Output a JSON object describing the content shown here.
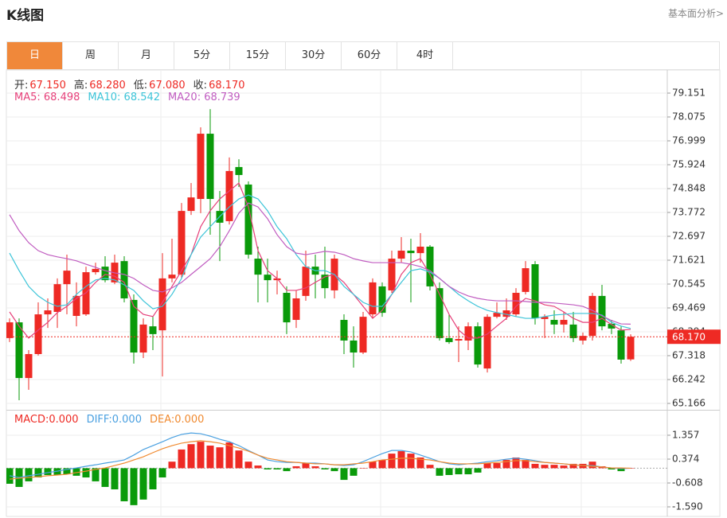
{
  "header": {
    "title": "K线图",
    "link": "基本面分析>"
  },
  "tabs": [
    "日",
    "周",
    "月",
    "5分",
    "15分",
    "30分",
    "60分",
    "4时"
  ],
  "chart_data": [
    {
      "type": "candlestick",
      "up_color": "#ee2a24",
      "down_color": "#0a9a0a",
      "info": [
        {
          "label": "开:",
          "value": "67.150"
        },
        {
          "label": "高:",
          "value": "68.280"
        },
        {
          "label": "低:",
          "value": "67.080"
        },
        {
          "label": "收:",
          "value": "68.170"
        }
      ],
      "legend": [
        "MA5: 68.498",
        "MA10: 68.542",
        "MA20: 68.739"
      ],
      "current_price": {
        "value": 68.17,
        "label": "68.170"
      },
      "ylim": [
        64.879,
        80.155
      ],
      "yticks": [
        79.151,
        78.075,
        76.999,
        75.924,
        74.848,
        73.772,
        72.697,
        71.621,
        70.545,
        69.469,
        68.394,
        67.318,
        66.242,
        65.166
      ],
      "grid": true,
      "open": [
        68.11,
        68.82,
        66.31,
        67.39,
        69.18,
        69.29,
        70.54,
        69.11,
        69.18,
        71.08,
        71.33,
        70.62,
        71.58,
        69.83,
        67.46,
        68.64,
        68.46,
        70.8,
        70.97,
        73.84,
        74.38,
        77.32,
        73.84,
        73.38,
        75.82,
        75.03,
        71.69,
        70.97,
        70.72,
        70.15,
        68.93,
        70.01,
        71.33,
        70.97,
        70.26,
        68.93,
        68.0,
        67.46,
        69.18,
        70.44,
        70.26,
        71.69,
        72.05,
        71.94,
        72.23,
        70.36,
        68.11,
        68.0,
        68.0,
        68.64,
        66.74,
        69.07,
        69.07,
        69.18,
        70.19,
        71.44,
        68.97,
        68.93,
        68.72,
        68.72,
        68.0,
        68.21,
        70.01,
        68.75,
        68.46,
        67.15
      ],
      "high": [
        69.0,
        69.0,
        67.57,
        69.72,
        69.9,
        70.8,
        71.87,
        70.62,
        71.33,
        71.51,
        71.8,
        71.87,
        71.8,
        70.08,
        69.0,
        69.07,
        71.94,
        72.59,
        74.2,
        75.1,
        77.61,
        78.43,
        74.74,
        76.25,
        76.17,
        75.17,
        72.23,
        71.69,
        71.15,
        70.44,
        70.26,
        72.05,
        71.87,
        72.23,
        71.87,
        69.18,
        68.64,
        69.29,
        70.8,
        70.62,
        72.05,
        72.66,
        72.59,
        72.84,
        72.3,
        70.62,
        69.18,
        68.64,
        68.82,
        68.82,
        69.18,
        69.72,
        69.9,
        70.36,
        71.58,
        71.58,
        69.18,
        69.36,
        69.29,
        69.29,
        68.36,
        70.15,
        70.51,
        68.93,
        68.64,
        68.28
      ],
      "low": [
        67.93,
        65.31,
        65.78,
        67.32,
        68.57,
        68.57,
        69.18,
        68.64,
        69.11,
        70.97,
        70.62,
        70.54,
        69.72,
        66.96,
        67.21,
        67.57,
        66.38,
        70.62,
        70.8,
        73.66,
        73.74,
        72.77,
        71.58,
        73.23,
        74.92,
        71.69,
        69.72,
        69.72,
        70.08,
        68.29,
        68.57,
        69.79,
        69.9,
        69.9,
        69.9,
        67.39,
        66.78,
        67.39,
        69.0,
        69.07,
        70.15,
        71.51,
        69.72,
        71.51,
        70.26,
        68.0,
        67.85,
        67.03,
        67.57,
        66.78,
        66.56,
        69.0,
        68.93,
        69.07,
        70.08,
        68.72,
        68.11,
        68.29,
        68.36,
        67.93,
        67.82,
        68.0,
        68.46,
        68.29,
        66.96,
        67.08
      ],
      "close": [
        68.82,
        66.31,
        67.39,
        69.18,
        69.36,
        70.54,
        71.15,
        70.01,
        71.08,
        71.23,
        70.72,
        71.51,
        69.9,
        67.46,
        68.72,
        68.29,
        70.8,
        70.97,
        73.84,
        74.45,
        77.32,
        74.38,
        73.31,
        75.64,
        75.46,
        71.87,
        70.97,
        70.72,
        70.8,
        68.82,
        69.9,
        71.33,
        70.97,
        70.36,
        71.69,
        68.0,
        67.46,
        69.07,
        70.62,
        69.25,
        71.69,
        72.05,
        71.94,
        72.23,
        70.44,
        68.11,
        67.93,
        68.07,
        68.64,
        66.92,
        69.07,
        69.25,
        69.36,
        70.15,
        71.26,
        69.0,
        69.07,
        68.72,
        68.93,
        68.11,
        68.21,
        70.01,
        68.64,
        68.54,
        67.14,
        68.17
      ],
      "series": [
        {
          "color": "#e6407a",
          "values": [
            69.29,
            68.65,
            68.11,
            68.47,
            68.82,
            69.26,
            69.54,
            69.9,
            70.15,
            70.62,
            70.98,
            70.9,
            70.62,
            69.54,
            69.18,
            69.08,
            69.72,
            70.44,
            71.15,
            71.87,
            73.13,
            73.85,
            74.38,
            74.74,
            75.1,
            74.02,
            72.05,
            71.15,
            70.8,
            70.26,
            70.26,
            70.37,
            70.62,
            70.87,
            70.98,
            70.62,
            70.08,
            69.54,
            69.0,
            69.36,
            70.08,
            70.98,
            71.51,
            71.69,
            70.98,
            70.08,
            69.18,
            68.47,
            68.11,
            68.11,
            68.29,
            68.65,
            69.0,
            69.54,
            69.9,
            69.79,
            69.61,
            69.54,
            69.29,
            69.0,
            68.82,
            68.82,
            69.0,
            68.72,
            68.47,
            68.498
          ]
        },
        {
          "color": "#3cc4d8",
          "values": [
            71.94,
            71.15,
            70.44,
            70.01,
            69.72,
            69.54,
            69.61,
            70.08,
            70.44,
            70.73,
            70.8,
            70.73,
            70.51,
            70.26,
            69.79,
            69.43,
            69.54,
            70.08,
            70.8,
            71.87,
            72.66,
            73.13,
            73.59,
            74.02,
            74.38,
            74.56,
            74.38,
            73.85,
            73.13,
            72.59,
            71.87,
            71.33,
            71.15,
            71.15,
            70.98,
            70.44,
            70.08,
            69.72,
            69.54,
            69.54,
            70.08,
            70.62,
            71.15,
            71.23,
            71.08,
            70.8,
            70.44,
            70.08,
            69.79,
            69.54,
            69.36,
            69.26,
            69.18,
            69.08,
            69.0,
            69.0,
            69.08,
            69.15,
            69.18,
            69.22,
            69.22,
            69.22,
            69.15,
            68.82,
            68.65,
            68.542
          ]
        },
        {
          "color": "#c05cc0",
          "values": [
            73.67,
            72.95,
            72.41,
            72.05,
            71.87,
            71.77,
            71.69,
            71.59,
            71.44,
            71.3,
            71.15,
            71.05,
            70.98,
            70.8,
            70.51,
            70.26,
            70.19,
            70.37,
            70.62,
            70.98,
            71.33,
            71.69,
            72.23,
            72.95,
            73.74,
            74.2,
            74.02,
            73.49,
            72.77,
            72.23,
            71.94,
            71.87,
            71.94,
            72.02,
            71.98,
            71.87,
            71.69,
            71.59,
            71.51,
            71.51,
            71.51,
            71.51,
            71.44,
            71.33,
            71.15,
            70.8,
            70.44,
            70.19,
            70.01,
            69.9,
            69.83,
            69.79,
            69.79,
            69.79,
            69.76,
            69.72,
            69.72,
            69.69,
            69.65,
            69.61,
            69.54,
            69.36,
            69.11,
            68.9,
            68.75,
            68.739
          ]
        }
      ]
    },
    {
      "type": "macd",
      "up_color": "#ee2a24",
      "down_color": "#0a9a0a",
      "legend": [
        "MACD:0.000",
        "DIFF:0.000",
        "DEA:0.000"
      ],
      "legend_colors": [
        "#ee2a24",
        "#4aa0e0",
        "#f08a30"
      ],
      "ylim": [
        -1.95,
        2.371
      ],
      "yticks": [
        1.357,
        0.374,
        -0.608,
        {
          "value": -1.59,
          "label": "-1.590"
        }
      ],
      "grid": true,
      "values": [
        -0.64,
        -0.77,
        -0.54,
        -0.38,
        -0.28,
        -0.28,
        -0.25,
        -0.31,
        -0.38,
        -0.54,
        -0.77,
        -0.87,
        -1.36,
        -1.52,
        -1.29,
        -0.87,
        -0.38,
        0.27,
        0.77,
        0.99,
        1.09,
        0.93,
        0.86,
        1.06,
        0.73,
        0.27,
        0.11,
        -0.05,
        -0.05,
        -0.12,
        0.08,
        0.21,
        0.08,
        -0.05,
        -0.12,
        -0.48,
        -0.31,
        0.01,
        0.27,
        0.34,
        0.6,
        0.7,
        0.6,
        0.44,
        0.14,
        -0.31,
        -0.28,
        -0.25,
        -0.25,
        -0.18,
        0.21,
        0.21,
        0.34,
        0.44,
        0.34,
        0.18,
        0.14,
        0.14,
        0.11,
        0.18,
        0.18,
        0.27,
        0.08,
        -0.05,
        -0.12,
        0
      ],
      "series": [
        {
          "color": "#4aa0e0",
          "values": [
            -0.31,
            -0.38,
            -0.31,
            -0.25,
            -0.18,
            -0.12,
            -0.05,
            0.01,
            0.08,
            0.14,
            0.21,
            0.27,
            0.34,
            0.54,
            0.77,
            0.93,
            1.09,
            1.26,
            1.39,
            1.45,
            1.42,
            1.32,
            1.19,
            1.09,
            0.93,
            0.73,
            0.54,
            0.34,
            0.27,
            0.24,
            0.24,
            0.21,
            0.21,
            0.18,
            0.14,
            0.11,
            0.14,
            0.27,
            0.44,
            0.6,
            0.73,
            0.73,
            0.67,
            0.54,
            0.41,
            0.27,
            0.18,
            0.14,
            0.18,
            0.21,
            0.27,
            0.31,
            0.37,
            0.41,
            0.37,
            0.31,
            0.24,
            0.21,
            0.18,
            0.14,
            0.11,
            0.11,
            0.05,
            0.01,
            -0.02,
            0
          ]
        },
        {
          "color": "#f08a30",
          "values": [
            -0.45,
            -0.41,
            -0.38,
            -0.35,
            -0.31,
            -0.28,
            -0.25,
            -0.18,
            -0.12,
            -0.05,
            0.01,
            0.11,
            0.21,
            0.34,
            0.47,
            0.64,
            0.8,
            0.93,
            1.03,
            1.09,
            1.13,
            1.09,
            1.03,
            0.93,
            0.83,
            0.7,
            0.54,
            0.41,
            0.34,
            0.27,
            0.24,
            0.21,
            0.18,
            0.18,
            0.14,
            0.14,
            0.18,
            0.21,
            0.27,
            0.34,
            0.37,
            0.41,
            0.41,
            0.37,
            0.34,
            0.27,
            0.21,
            0.18,
            0.18,
            0.18,
            0.21,
            0.24,
            0.27,
            0.31,
            0.31,
            0.27,
            0.24,
            0.21,
            0.18,
            0.14,
            0.11,
            0.08,
            0.05,
            0.01,
            0.01,
            0
          ]
        }
      ]
    }
  ]
}
